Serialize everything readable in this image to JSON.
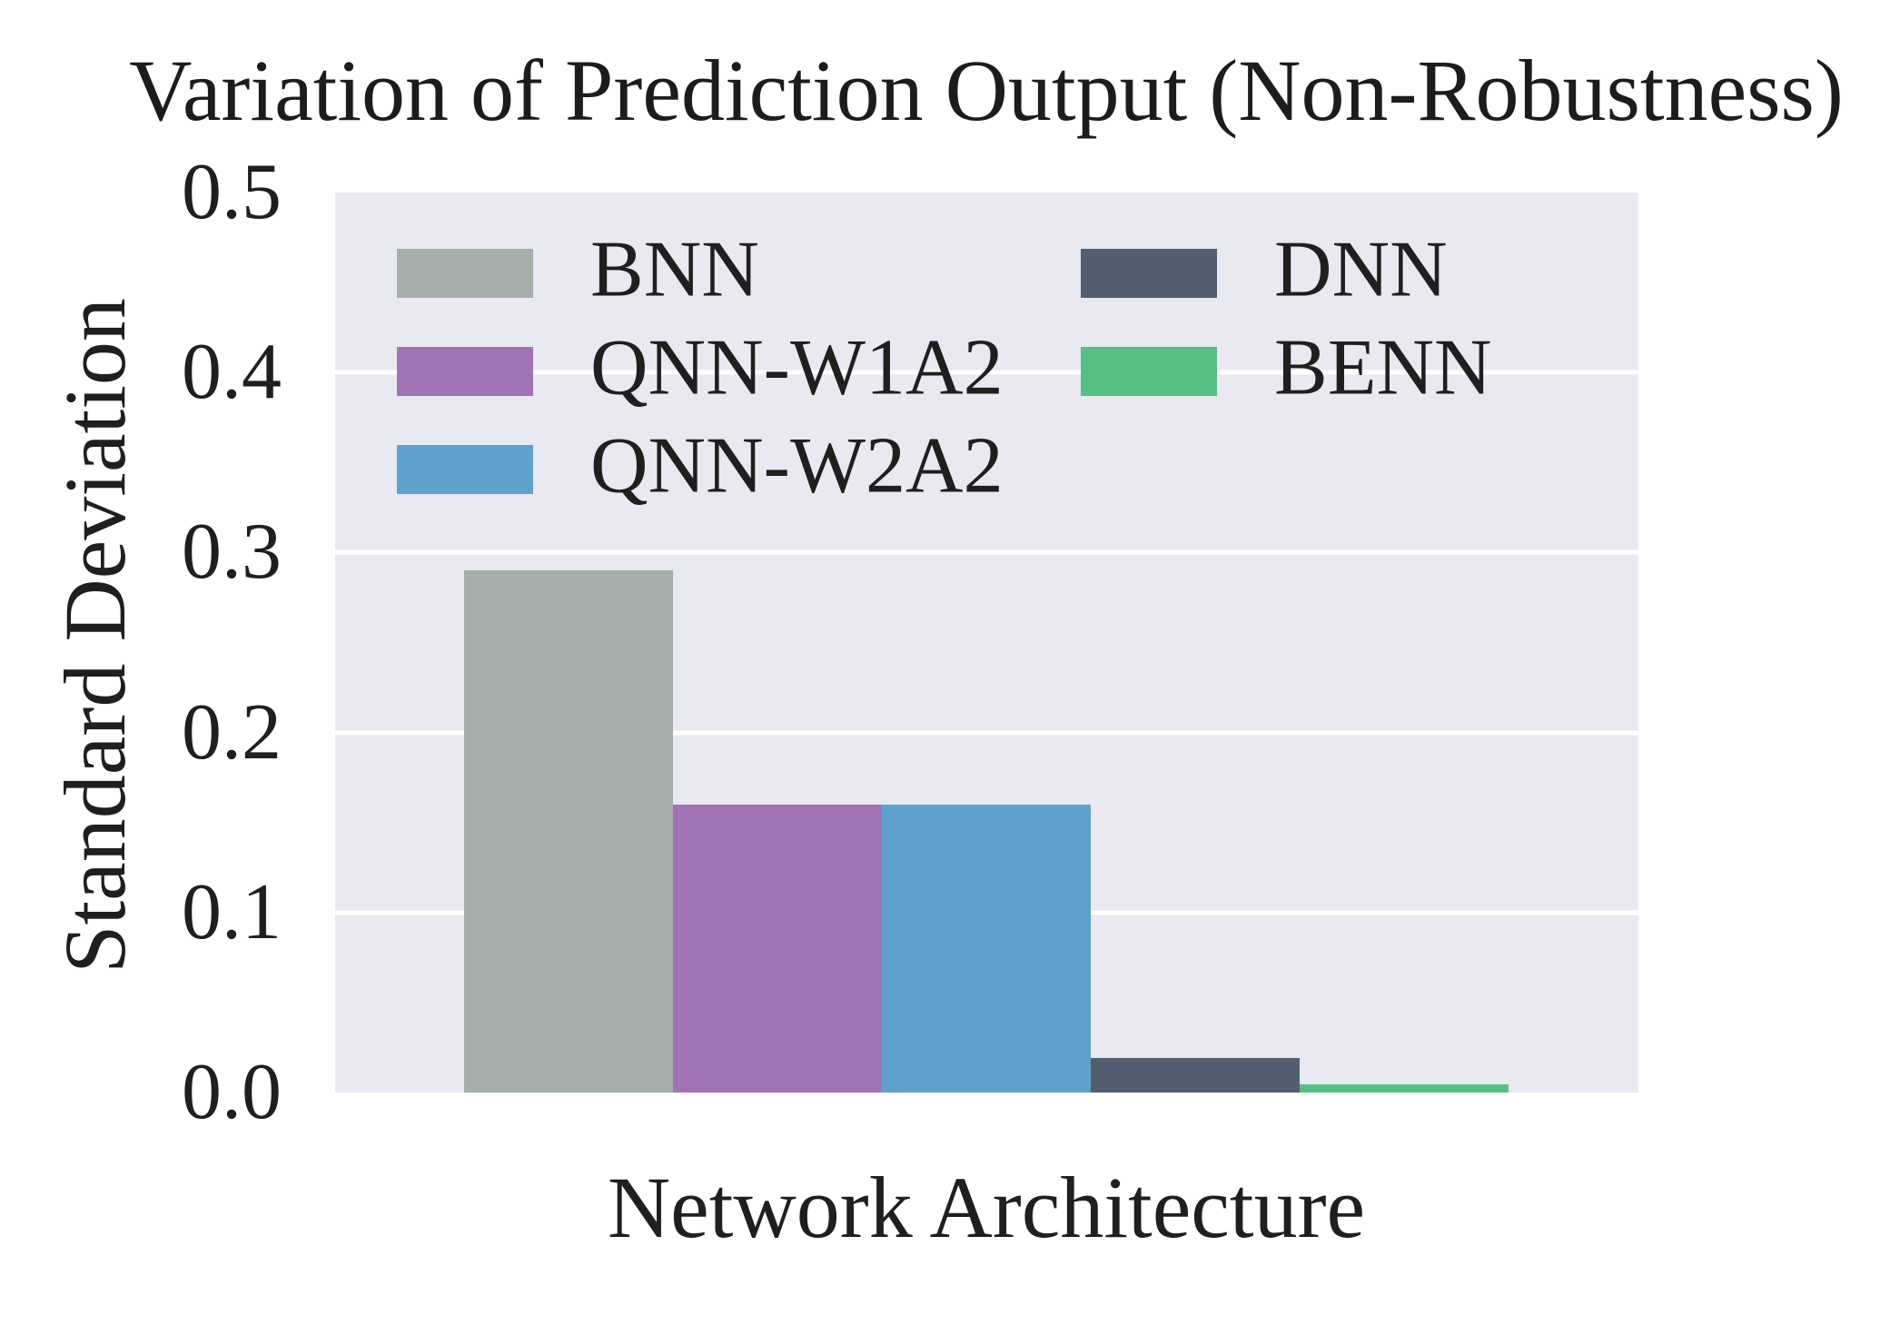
{
  "title": "Variation of Prediction Output (Non-Robustness)",
  "axes": {
    "ylabel": "Standard Deviation",
    "xlabel": "Network Architecture"
  },
  "colors": {
    "figure_bg": "#ffffff",
    "plot_bg": "#e9e9f1",
    "grid": "#ffffff",
    "text": "#1f1f1f"
  },
  "chart_data": {
    "type": "bar",
    "title": "Variation of Prediction Output (Non-Robustness)",
    "xlabel": "Network Architecture",
    "ylabel": "Standard Deviation",
    "ylim": [
      0.0,
      0.5
    ],
    "yticks": [
      0.0,
      0.1,
      0.2,
      0.3,
      0.4,
      0.5
    ],
    "grid": true,
    "legend_position": "upper-inside-two-columns",
    "series": [
      {
        "name": "BNN",
        "value": 0.29,
        "color": "#a5adad"
      },
      {
        "name": "QNN-W1A2",
        "value": 0.16,
        "color": "#a173b5"
      },
      {
        "name": "QNN-W2A2",
        "value": 0.16,
        "color": "#5fa1cd"
      },
      {
        "name": "DNN",
        "value": 0.019,
        "color": "#525f70"
      },
      {
        "name": "BENN",
        "value": 0.0045,
        "color": "#57bf83"
      }
    ]
  }
}
